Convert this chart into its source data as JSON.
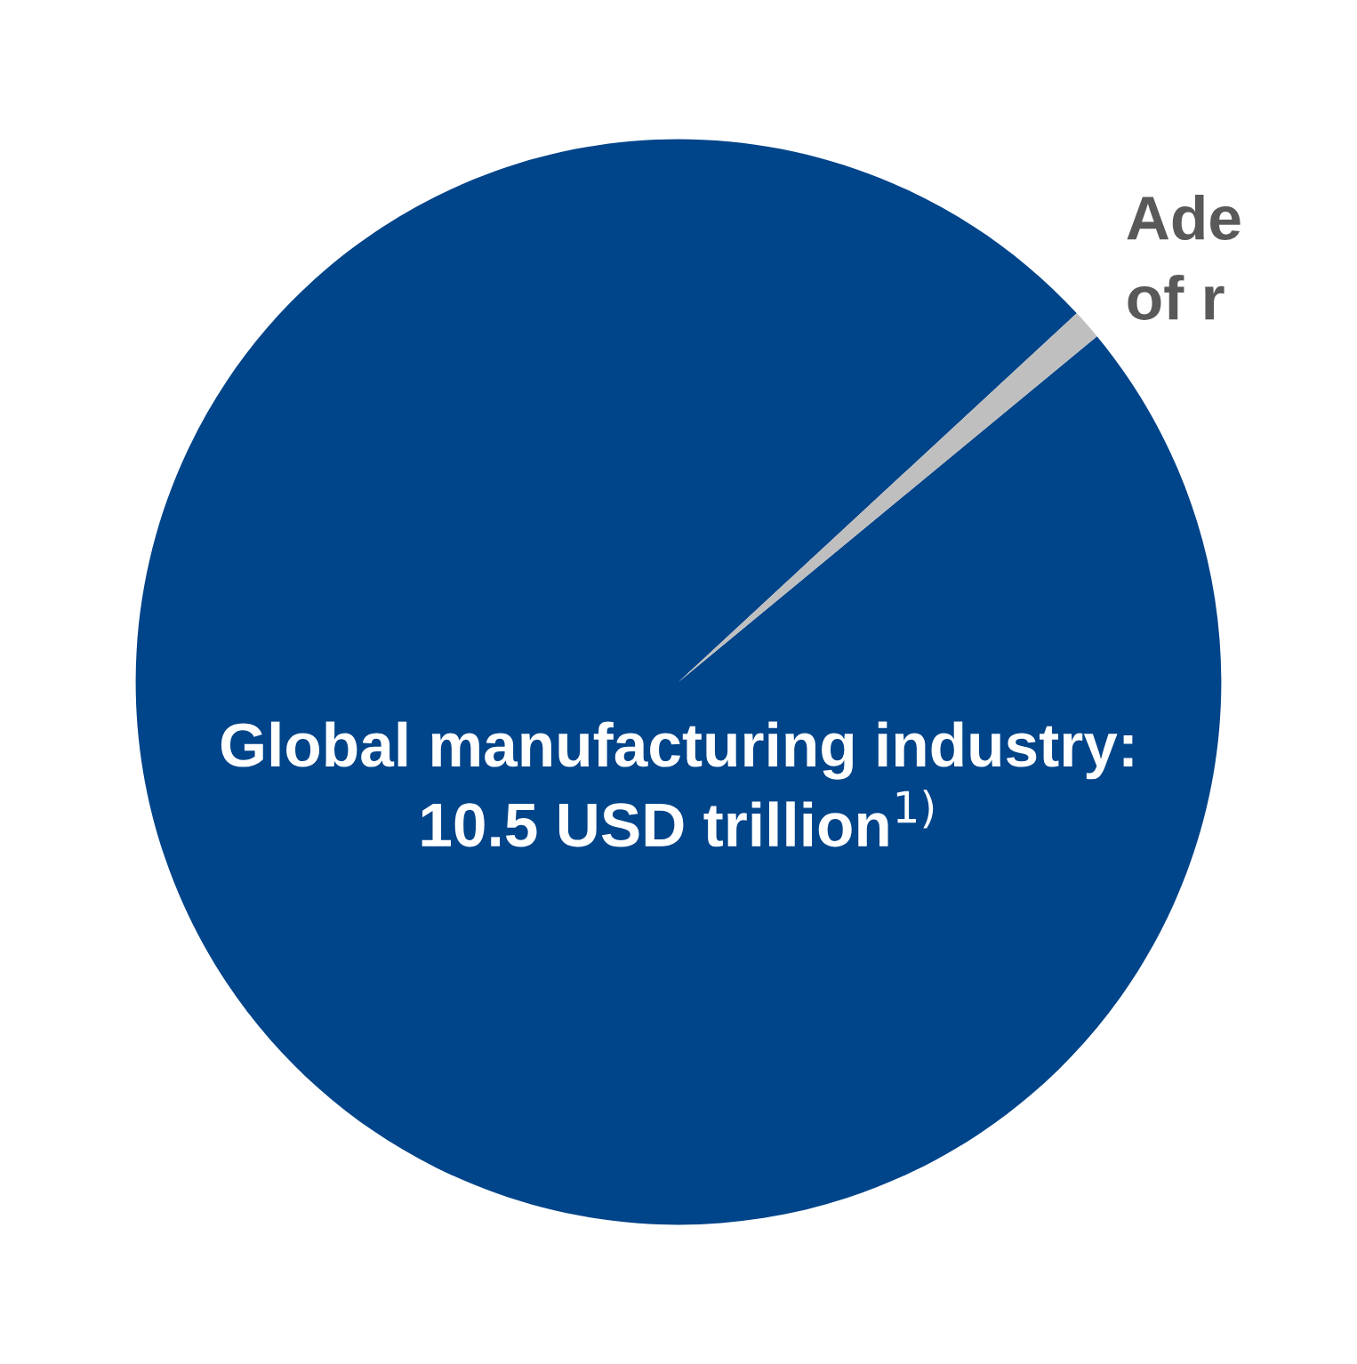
{
  "chart_data": {
    "type": "pie",
    "categories": [
      "Global manufacturing industry:\n10.5 USD trillion$^{1)}$",
      "Ade\nof r"
    ],
    "values": [
      99.1,
      0.9
    ],
    "colors": [
      "#00448a",
      "#bfbfbf"
    ],
    "legend": false
  }
}
